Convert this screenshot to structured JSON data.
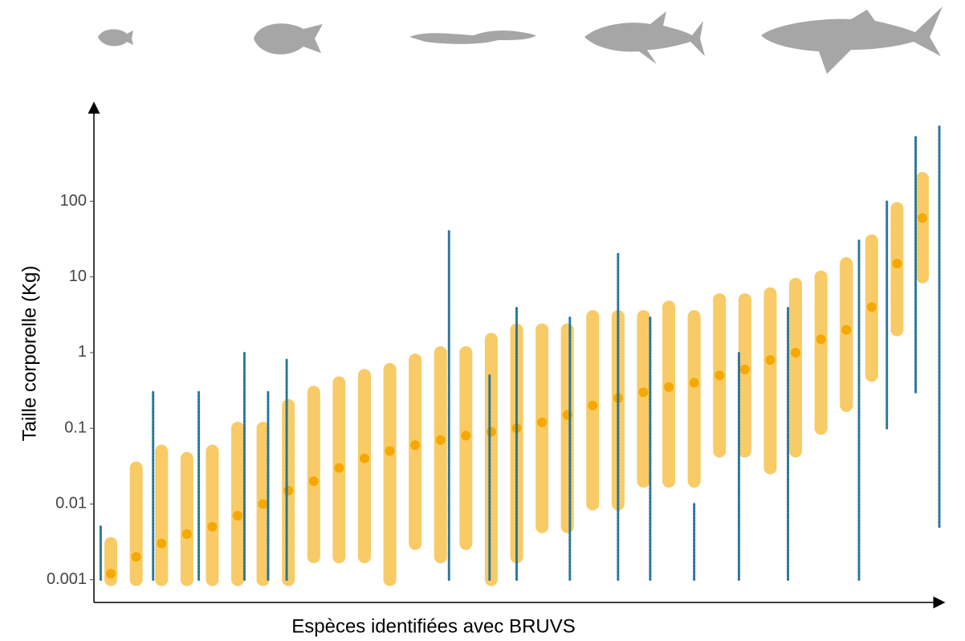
{
  "chart_data": {
    "type": "range",
    "y_label": "Taille corporelle (Kg)",
    "x_label": "Espèces identifiées avec BRUVS",
    "log_scale": true,
    "xlim": [
      0,
      100
    ],
    "ylim": [
      0.0005,
      1900
    ],
    "yticks": [
      0.001,
      0.01,
      0.1,
      1,
      10,
      100
    ],
    "series": [
      {
        "color": "#f5a800",
        "x": [
          2,
          5,
          8,
          11,
          14,
          17,
          20,
          23,
          26,
          29,
          32,
          35,
          38,
          41,
          44,
          47,
          50,
          53,
          56,
          59,
          62,
          65,
          68,
          71,
          74,
          77,
          80,
          83,
          86,
          89,
          92,
          95,
          98
        ],
        "min": [
          0.001,
          0.001,
          0.001,
          0.001,
          0.001,
          0.001,
          0.001,
          0.001,
          0.002,
          0.002,
          0.002,
          0.001,
          0.003,
          0.002,
          0.003,
          0.001,
          0.002,
          0.005,
          0.005,
          0.01,
          0.01,
          0.02,
          0.02,
          0.02,
          0.05,
          0.05,
          0.03,
          0.05,
          0.1,
          0.2,
          0.5,
          2,
          10
        ],
        "values": [
          0.0012,
          0.002,
          0.003,
          0.004,
          0.005,
          0.007,
          0.01,
          0.015,
          0.02,
          0.03,
          0.04,
          0.05,
          0.06,
          0.07,
          0.08,
          0.09,
          0.1,
          0.12,
          0.15,
          0.2,
          0.25,
          0.3,
          0.35,
          0.4,
          0.5,
          0.6,
          0.8,
          1,
          1.5,
          2,
          4,
          15,
          60
        ],
        "max": [
          0.003,
          0.03,
          0.05,
          0.04,
          0.05,
          0.1,
          0.1,
          0.2,
          0.3,
          0.4,
          0.5,
          0.6,
          0.8,
          1,
          1,
          1.5,
          2,
          2,
          2,
          3,
          3,
          3,
          4,
          3,
          5,
          5,
          6,
          8,
          10,
          15,
          30,
          80,
          200
        ]
      },
      {
        "color": "#1f6f95",
        "x": [
          0.8,
          7,
          12.4,
          17.8,
          20.6,
          22.8,
          42,
          46.8,
          50,
          56.3,
          62,
          65.8,
          71,
          76.3,
          82.1,
          90.5,
          93.8,
          97.2,
          100
        ],
        "min": [
          0.001,
          0.001,
          0.001,
          0.001,
          0.001,
          0.001,
          0.001,
          0.001,
          0.001,
          0.001,
          0.001,
          0.001,
          0.001,
          0.001,
          0.001,
          0.001,
          0.1,
          0.3,
          0.005
        ],
        "max": [
          0.005,
          0.3,
          0.3,
          1,
          0.3,
          0.8,
          40,
          0.5,
          4,
          3,
          20,
          3,
          0.01,
          1,
          4,
          30,
          100,
          700,
          1000
        ]
      }
    ]
  }
}
